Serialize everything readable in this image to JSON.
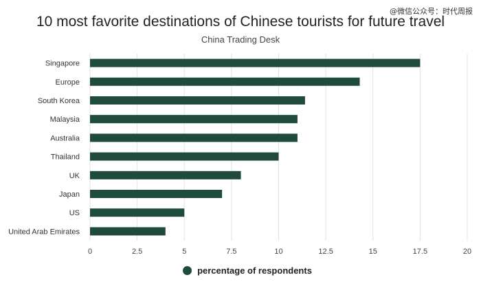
{
  "watermark": "@微信公众号：时代周报",
  "chart_data": {
    "type": "bar",
    "orientation": "horizontal",
    "title": "10 most favorite destinations of Chinese tourists for future travel",
    "subtitle": "China Trading Desk",
    "categories": [
      "Singapore",
      "Europe",
      "South Korea",
      "Malaysia",
      "Australia",
      "Thailand",
      "UK",
      "Japan",
      "US",
      "United Arab Emirates"
    ],
    "series": [
      {
        "name": "percentage of respondents",
        "values": [
          17.5,
          14.3,
          11.4,
          11,
          11,
          10,
          8,
          7,
          5,
          4
        ]
      }
    ],
    "xlim": [
      0,
      20
    ],
    "xticks": [
      "0",
      "2.5",
      "5",
      "7.5",
      "10",
      "12.5",
      "15",
      "17.5",
      "20"
    ],
    "grid": true,
    "legend_position": "bottom",
    "bar_color": "#1f4b3d"
  }
}
